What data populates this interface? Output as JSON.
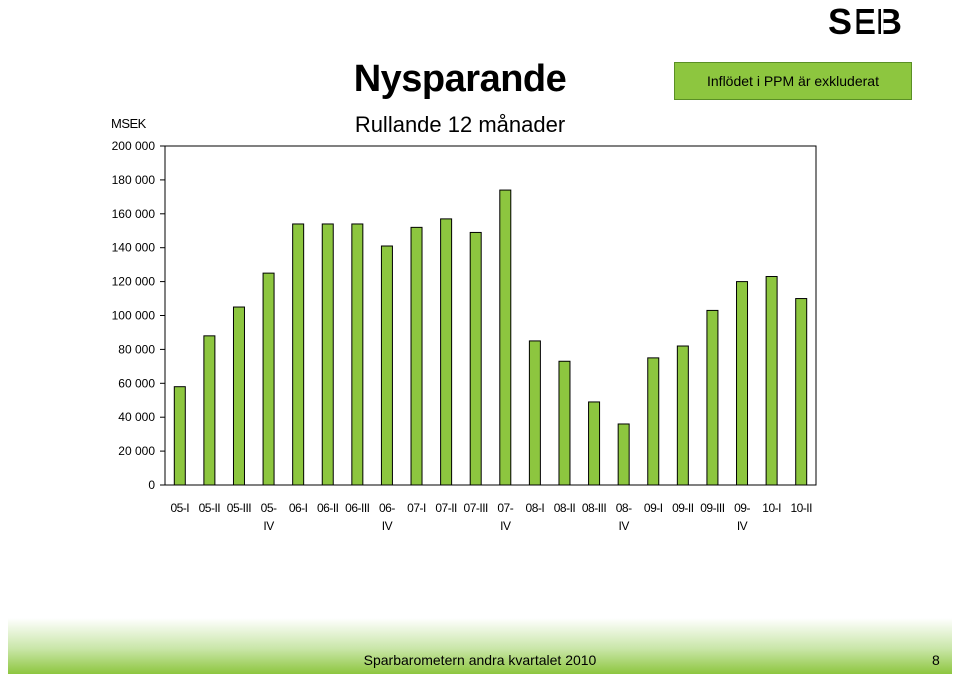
{
  "brand": {
    "logo_text": "SEB"
  },
  "colors": {
    "bar_fill": "#8dc63f",
    "bar_stroke": "#000000",
    "note_bg": "#8dc63f"
  },
  "note": "Inflödet i PPM är exkluderat",
  "footer": {
    "text": "Sparbarometern andra kvartalet 2010",
    "page": "8"
  },
  "chart_data": {
    "type": "bar",
    "title": "Nysparande",
    "subtitle": "Rullande 12 månader",
    "ylabel": "MSEK",
    "xlabel": "",
    "ylim": [
      0,
      200000
    ],
    "yticks": [
      0,
      20000,
      40000,
      60000,
      80000,
      100000,
      120000,
      140000,
      160000,
      180000,
      200000
    ],
    "ytick_labels": [
      "0",
      "20 000",
      "40 000",
      "60 000",
      "80 000",
      "100 000",
      "120 000",
      "140 000",
      "160 000",
      "180 000",
      "200 000"
    ],
    "grid": false,
    "categories": [
      [
        "05-I"
      ],
      [
        "05-II"
      ],
      [
        "05-III"
      ],
      [
        "05-",
        "IV"
      ],
      [
        "06-I"
      ],
      [
        "06-II"
      ],
      [
        "06-III"
      ],
      [
        "06-",
        "IV"
      ],
      [
        "07-I"
      ],
      [
        "07-II"
      ],
      [
        "07-III"
      ],
      [
        "07-",
        "IV"
      ],
      [
        "08-I"
      ],
      [
        "08-II"
      ],
      [
        "08-III"
      ],
      [
        "08-",
        "IV"
      ],
      [
        "09-I"
      ],
      [
        "09-II"
      ],
      [
        "09-III"
      ],
      [
        "09-",
        "IV"
      ],
      [
        "10-I"
      ],
      [
        "10-II"
      ]
    ],
    "values": [
      58000,
      88000,
      105000,
      125000,
      154000,
      154000,
      154000,
      141000,
      152000,
      157000,
      149000,
      174000,
      85000,
      73000,
      49000,
      36000,
      75000,
      82000,
      103000,
      120000,
      123000,
      110000
    ]
  }
}
